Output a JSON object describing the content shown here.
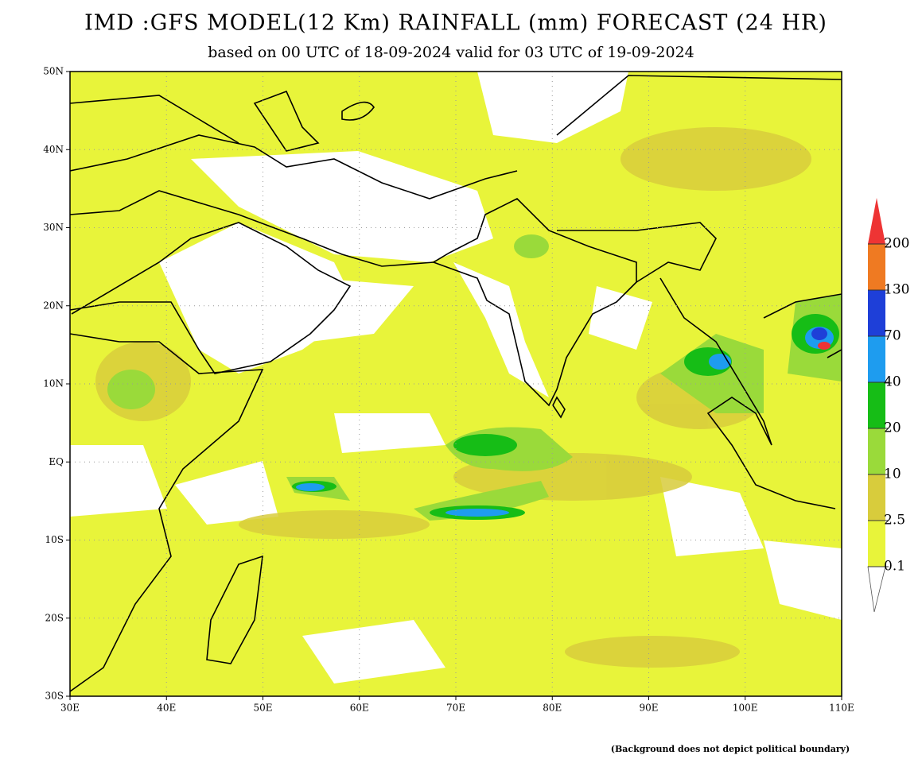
{
  "header": {
    "title": "IMD :GFS MODEL(12 Km) RAINFALL (mm) FORECAST (24 HR)",
    "subtitle": "based on 00 UTC of 18-09-2024 valid for 03 UTC of 19-09-2024"
  },
  "map": {
    "lon_range": [
      30,
      110
    ],
    "lat_range": [
      -30,
      50
    ],
    "lon_ticks": [
      {
        "value": 30,
        "label": "30E"
      },
      {
        "value": 40,
        "label": "40E"
      },
      {
        "value": 50,
        "label": "50E"
      },
      {
        "value": 60,
        "label": "60E"
      },
      {
        "value": 70,
        "label": "70E"
      },
      {
        "value": 80,
        "label": "80E"
      },
      {
        "value": 90,
        "label": "90E"
      },
      {
        "value": 100,
        "label": "100E"
      },
      {
        "value": 110,
        "label": "110E"
      }
    ],
    "lat_ticks": [
      {
        "value": 50,
        "label": "50N"
      },
      {
        "value": 40,
        "label": "40N"
      },
      {
        "value": 30,
        "label": "30N"
      },
      {
        "value": 20,
        "label": "20N"
      },
      {
        "value": 10,
        "label": "10N"
      },
      {
        "value": 0,
        "label": "EQ"
      },
      {
        "value": -10,
        "label": "10S"
      },
      {
        "value": -20,
        "label": "20S"
      },
      {
        "value": -30,
        "label": "30S"
      }
    ],
    "grid": true
  },
  "colorbar": {
    "levels": [
      0.1,
      2.5,
      10,
      20,
      40,
      70,
      130,
      200
    ],
    "colors": [
      "#e8f43a",
      "#d8cc3c",
      "#9ada3a",
      "#16bd16",
      "#1e9cef",
      "#1e3fd8",
      "#ef7a22",
      "#ee3434"
    ]
  },
  "footnote": "(Background does not depict political boundary)"
}
